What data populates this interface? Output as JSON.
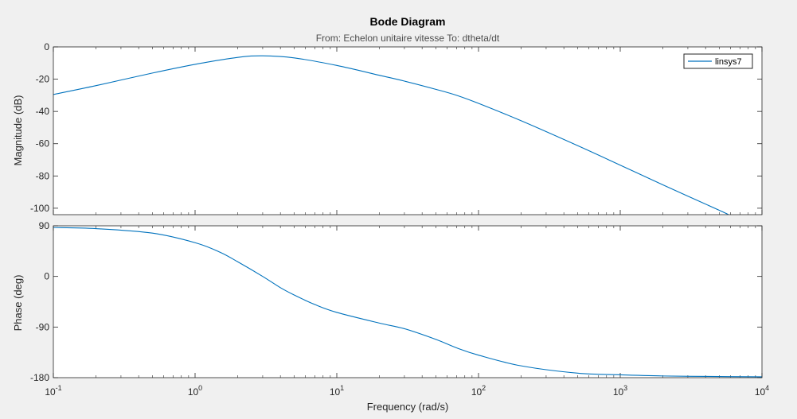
{
  "chart_data": {
    "type": "line",
    "title": "Bode Diagram",
    "subtitle": "From: Echelon unitaire vitesse  To: dtheta/dt",
    "xlabel": "Frequency  (rad/s)",
    "xscale": "log",
    "xlim": [
      0.1,
      10000
    ],
    "x_ticks": [
      {
        "value": 0.1,
        "base": "10",
        "exp": "-1"
      },
      {
        "value": 1,
        "base": "10",
        "exp": "0"
      },
      {
        "value": 10,
        "base": "10",
        "exp": "1"
      },
      {
        "value": 100,
        "base": "10",
        "exp": "2"
      },
      {
        "value": 1000,
        "base": "10",
        "exp": "3"
      },
      {
        "value": 10000,
        "base": "10",
        "exp": "4"
      }
    ],
    "grid": false,
    "legend": {
      "position": "top-right",
      "entries": [
        "linsys7"
      ]
    },
    "colors": {
      "series": "#0072bd",
      "axes": "#262626",
      "background": "#f0f0f0",
      "plot_bg": "#ffffff"
    },
    "panels": [
      {
        "name": "magnitude",
        "ylabel": "Magnitude (dB)",
        "ylim": [
          -104,
          0
        ],
        "yticks": [
          0,
          -20,
          -40,
          -60,
          -80,
          -100
        ],
        "ytick_labels": [
          "0",
          "-20",
          "-40",
          "-60",
          "-80",
          "-100"
        ],
        "series": [
          {
            "name": "linsys7",
            "x": [
              0.1,
              0.2,
              0.5,
              1,
              2,
              3,
              5,
              10,
              20,
              30,
              50,
              70,
              100,
              200,
              500,
              1000,
              2000,
              5000,
              5800
            ],
            "y": [
              -29.5,
              -24,
              -16.2,
              -10.8,
              -6.5,
              -5.5,
              -6.8,
              -11.5,
              -17.6,
              -21.2,
              -26.3,
              -30,
              -35,
              -45.8,
              -61.2,
              -73.3,
              -85.5,
              -101.3,
              -104
            ]
          }
        ]
      },
      {
        "name": "phase",
        "ylabel": "Phase (deg)",
        "ylim": [
          -180,
          90
        ],
        "yticks": [
          90,
          0,
          -90,
          -180
        ],
        "ytick_labels": [
          "90",
          "0",
          "-90",
          "-180"
        ],
        "series": [
          {
            "name": "linsys7",
            "x": [
              0.1,
              0.2,
              0.5,
              1,
              1.5,
              2,
              3,
              4,
              5,
              7,
              10,
              20,
              30,
              50,
              70,
              100,
              200,
              500,
              1000,
              2000,
              5000,
              10000
            ],
            "y": [
              87,
              85,
              77,
              60,
              43,
              26,
              0,
              -20,
              -33,
              -50,
              -64,
              -83,
              -93,
              -112,
              -127,
              -140,
              -159,
              -172,
              -175,
              -177,
              -178,
              -178.5
            ]
          }
        ]
      }
    ]
  }
}
